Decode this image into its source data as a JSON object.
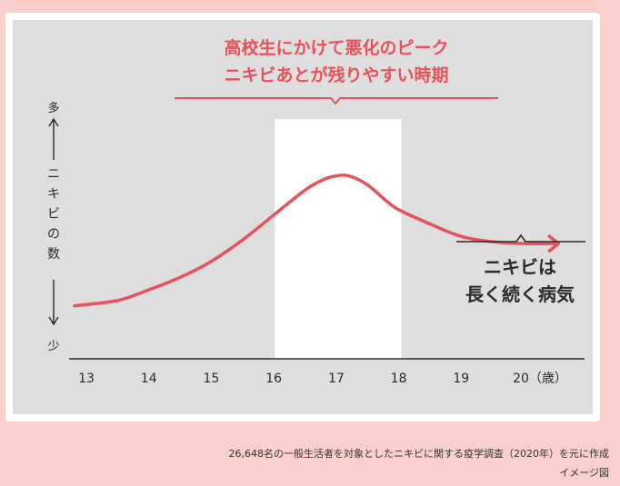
{
  "chart_data": {
    "type": "line",
    "title_lines": [
      "高校生にかけて悪化のピーク",
      "ニキビあとが残りやすい時期"
    ],
    "ylabel": "ニキビの数",
    "ylabel_top": "多",
    "ylabel_bottom": "少",
    "x_ticks": [
      "13",
      "14",
      "15",
      "16",
      "17",
      "18",
      "19",
      "20（歳）"
    ],
    "xlim": [
      13,
      20.6
    ],
    "ylim": [
      0,
      100
    ],
    "highlight_range": [
      16,
      18
    ],
    "series": [
      {
        "x": [
          13,
          13.5,
          14,
          14.5,
          15,
          15.5,
          16,
          16.5,
          16.8,
          17,
          17.2,
          17.5,
          17.8,
          18,
          18.5,
          19,
          19.5,
          20,
          20.5
        ],
        "y": [
          17,
          20,
          26,
          33,
          42,
          54,
          68,
          82,
          88,
          90,
          90,
          85,
          76,
          71,
          63,
          56,
          53,
          52,
          52
        ]
      }
    ],
    "annotation": [
      "ニキビは",
      "長く続く病気"
    ],
    "grid": false
  },
  "footer": {
    "source": "26,648名の一般生活者を対象としたニキビに関する疫学調査（2020年）を元に作成",
    "label": "イメージ図"
  },
  "colors": {
    "accent": "#e8525a",
    "panel": "#dedede",
    "highlight": "#ffffff",
    "background": "#f9d0cc",
    "text": "#2b2b2b"
  }
}
